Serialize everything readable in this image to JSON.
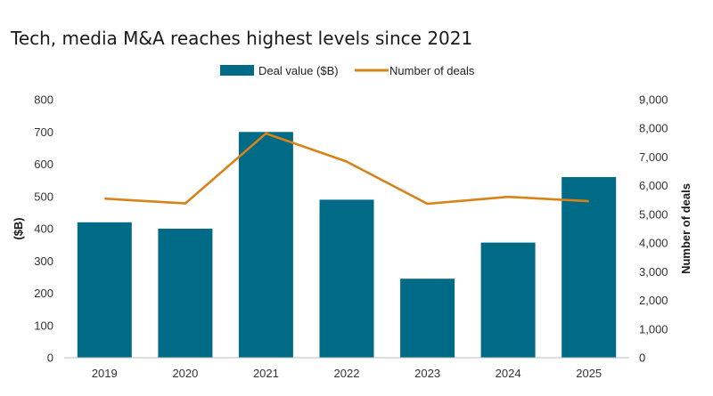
{
  "chart_data": {
    "type": "bar+line",
    "title": "Tech, media M&A reaches highest levels since 2021",
    "categories": [
      "2019",
      "2020",
      "2021",
      "2022",
      "2023",
      "2024",
      "2025"
    ],
    "series": [
      {
        "name": "Deal value ($B)",
        "type": "bar",
        "axis": "left",
        "values": [
          420,
          400,
          700,
          490,
          245,
          357,
          560
        ]
      },
      {
        "name": "Number of deals",
        "type": "line",
        "axis": "right",
        "values": [
          5550,
          5380,
          7820,
          6840,
          5370,
          5610,
          5460
        ]
      }
    ],
    "ylabel_left": "($B)",
    "ylabel_right": "Number of deals",
    "ylim_left": [
      0,
      800
    ],
    "ylim_right": [
      0,
      9000
    ],
    "yticks_left": [
      "0",
      "100",
      "200",
      "300",
      "400",
      "500",
      "600",
      "700",
      "800"
    ],
    "yticks_right": [
      "0",
      "1,000",
      "2,000",
      "3,000",
      "4,000",
      "5,000",
      "6,000",
      "7,000",
      "8,000",
      "9,000"
    ],
    "legend_position": "top-center",
    "grid": false
  },
  "colors": {
    "bar": "#006b86",
    "line": "#d98218",
    "axis": "#bfbfbf"
  }
}
